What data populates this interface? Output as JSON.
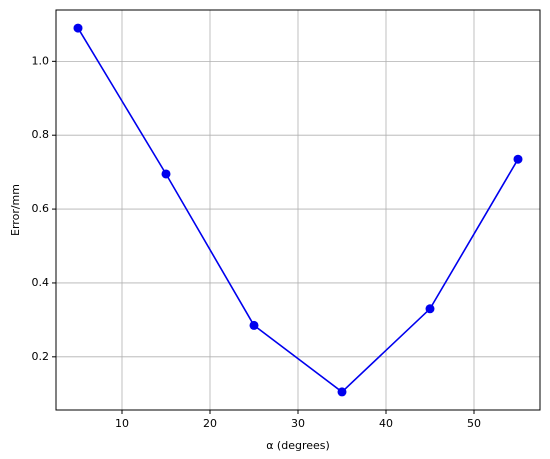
{
  "chart_data": {
    "type": "line",
    "x_label": "α  (degrees)",
    "y_label": "Error/mm",
    "x": [
      5,
      15,
      25,
      35,
      45,
      55
    ],
    "series": [
      {
        "color": "#0000ee",
        "values": [
          1.09,
          0.695,
          0.285,
          0.105,
          0.33,
          0.735
        ]
      }
    ],
    "xlim": [
      2.5,
      57.5
    ],
    "xticks": [
      10,
      20,
      30,
      40,
      50
    ],
    "ylim": [
      0.056,
      1.139
    ],
    "yticks": [
      0.2,
      0.4,
      0.6,
      0.8,
      {
        "value": 1.0,
        "label": "1.0"
      }
    ],
    "grid": true,
    "marker": "circle"
  }
}
